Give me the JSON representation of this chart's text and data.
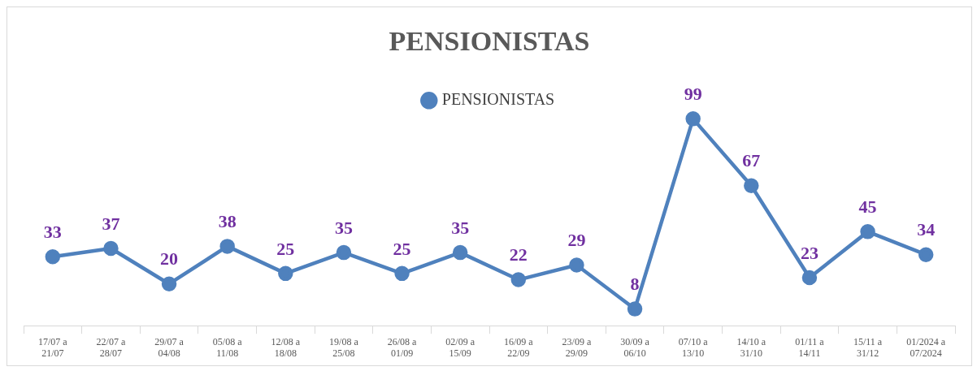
{
  "chart_data": {
    "type": "line",
    "title": "PENSIONISTAS",
    "categories": [
      "17/07 a\n21/07",
      "22/07 a\n28/07",
      "29/07 a\n04/08",
      "05/08 a\n11/08",
      "12/08 a\n18/08",
      "19/08 a\n25/08",
      "26/08 a\n01/09",
      "02/09 a\n15/09",
      "16/09 a\n22/09",
      "23/09 a\n29/09",
      "30/09 a\n06/10",
      "07/10 a\n13/10",
      "14/10 a\n31/10",
      "01/11 a\n14/11",
      "15/11 a\n31/12",
      "01/2024 a\n07/2024"
    ],
    "series": [
      {
        "name": "PENSIONISTAS",
        "color": "#4f81bd",
        "values": [
          33,
          37,
          20,
          38,
          25,
          35,
          25,
          35,
          22,
          29,
          8,
          99,
          67,
          23,
          45,
          34
        ]
      }
    ],
    "data_labels": true,
    "legend": "top",
    "marker": "circle",
    "line_style": "solid",
    "grid": false
  }
}
